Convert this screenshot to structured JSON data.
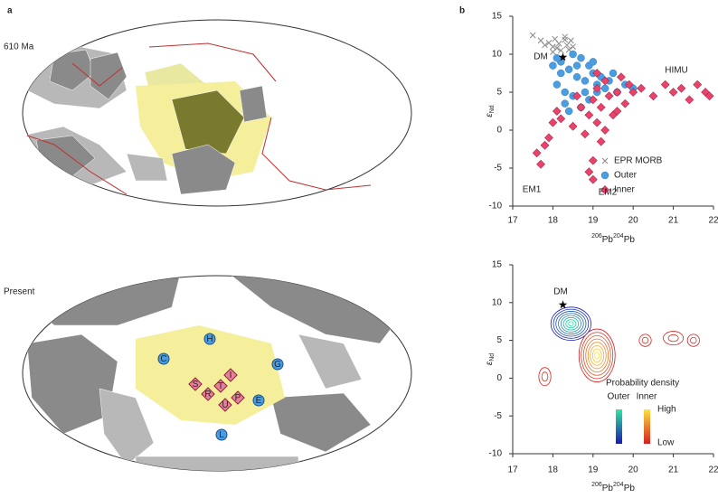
{
  "figure": {
    "panel_labels": [
      "a",
      "b"
    ],
    "maps": [
      {
        "label": "610 Ma"
      },
      {
        "label": "Present",
        "markers": [
          {
            "letter": "H",
            "group": "outer"
          },
          {
            "letter": "C",
            "group": "outer"
          },
          {
            "letter": "G",
            "group": "outer"
          },
          {
            "letter": "E",
            "group": "outer"
          },
          {
            "letter": "L",
            "group": "outer"
          },
          {
            "letter": "S",
            "group": "inner"
          },
          {
            "letter": "R",
            "group": "inner"
          },
          {
            "letter": "T",
            "group": "inner"
          },
          {
            "letter": "I",
            "group": "inner"
          },
          {
            "letter": "U",
            "group": "inner"
          },
          {
            "letter": "P",
            "group": "inner"
          }
        ]
      }
    ]
  },
  "chart_data": [
    {
      "type": "scatter",
      "xlim": [
        17,
        22
      ],
      "ylim": [
        -10,
        15
      ],
      "xticks": [
        17,
        18,
        19,
        20,
        21,
        22
      ],
      "yticks": [
        -10,
        -5,
        0,
        5,
        10,
        15
      ],
      "ylabel": [
        {
          "text": "ε"
        },
        {
          "text": "Nd",
          "sub": true
        }
      ],
      "xlabel": [
        {
          "text": "206",
          "sup": true
        },
        {
          "text": "Pb"
        },
        {
          "text": "204",
          "sup": true
        },
        {
          "text": "Pb"
        }
      ],
      "annotations": [
        "DM",
        "HIMU",
        "EM1",
        "EM2"
      ],
      "star": {
        "x": 18.25,
        "y": 9.6
      },
      "series": [
        {
          "name": "EPR MORB",
          "marker": "x",
          "color": "#888888",
          "x": [
            17.5,
            17.7,
            17.8,
            17.9,
            18.0,
            18.05,
            18.1,
            18.15,
            18.2,
            18.3,
            18.35,
            18.4,
            18.45,
            18.5,
            18.3,
            18.0
          ],
          "y": [
            12.5,
            11.8,
            11.2,
            11.5,
            11.0,
            12.0,
            10.8,
            11.4,
            10.5,
            11.9,
            11.2,
            10.6,
            11.8,
            11.0,
            12.3,
            10.3
          ]
        },
        {
          "name": "Outer",
          "marker": "circle",
          "color": "#4a9de0",
          "x": [
            18.0,
            18.1,
            18.2,
            18.3,
            18.4,
            18.5,
            18.6,
            18.7,
            18.8,
            18.9,
            19.0,
            19.1,
            19.2,
            19.3,
            19.4,
            19.6,
            19.8,
            20.0,
            18.3,
            18.5,
            18.7,
            18.9,
            19.1,
            18.2,
            18.4,
            18.6,
            18.8,
            19.0,
            19.5,
            18.1
          ],
          "y": [
            8.5,
            6.0,
            9.0,
            5.0,
            8.0,
            10.0,
            7.0,
            9.5,
            6.5,
            8.5,
            7.5,
            6.0,
            7.0,
            5.5,
            6.5,
            5.0,
            6.0,
            5.5,
            3.5,
            4.5,
            3.0,
            4.0,
            5.0,
            7.5,
            2.5,
            8.5,
            5.0,
            9.0,
            7.5,
            9.5
          ]
        },
        {
          "name": "Inner",
          "marker": "diamond",
          "color": "#e8446a",
          "x": [
            17.6,
            17.7,
            17.8,
            17.9,
            18.0,
            18.1,
            18.2,
            18.5,
            18.7,
            18.8,
            18.9,
            19.0,
            19.0,
            19.1,
            19.1,
            19.2,
            19.2,
            19.3,
            19.4,
            19.5,
            19.6,
            19.7,
            19.8,
            19.9,
            20.0,
            20.2,
            20.5,
            20.8,
            21.0,
            21.2,
            21.4,
            21.6,
            21.8,
            21.9,
            19.0,
            18.9,
            19.3,
            19.1,
            18.6,
            19.6
          ],
          "y": [
            -3.0,
            -4.5,
            -2.0,
            -1.0,
            1.0,
            2.5,
            1.5,
            0.5,
            3.0,
            -0.5,
            2.0,
            4.0,
            -4.0,
            1.0,
            5.5,
            3.0,
            -1.5,
            6.5,
            4.5,
            2.0,
            5.0,
            7.0,
            3.5,
            6.0,
            5.0,
            5.5,
            4.5,
            6.0,
            5.0,
            5.5,
            4.0,
            6.0,
            5.0,
            4.5,
            -6.5,
            -5.5,
            0.0,
            7.5,
            4.5,
            2.5
          ]
        }
      ]
    },
    {
      "type": "density",
      "xlim": [
        17,
        22
      ],
      "ylim": [
        -10,
        15
      ],
      "xticks": [
        17,
        18,
        19,
        20,
        21,
        22
      ],
      "yticks": [
        -10,
        -5,
        0,
        5,
        10,
        15
      ],
      "ylabel": [
        {
          "text": "ε"
        },
        {
          "text": "Nd",
          "sub": true
        }
      ],
      "xlabel": [
        {
          "text": "206",
          "sup": true
        },
        {
          "text": "Pb"
        },
        {
          "text": "204",
          "sup": true
        },
        {
          "text": "Pb"
        }
      ],
      "annotations": [
        "DM"
      ],
      "star": {
        "x": 18.25,
        "y": 9.7
      },
      "legend_title": "Probability density",
      "high_label": "High",
      "low_label": "Low",
      "groups": [
        {
          "name": "Outer",
          "colors": [
            "#1a1ab0",
            "#2ee8a0"
          ],
          "peaks": [
            {
              "x": 18.45,
              "y": 7.2,
              "rx": 0.5,
              "ry": 2.2
            }
          ]
        },
        {
          "name": "Inner",
          "colors": [
            "#d42020",
            "#ffe040"
          ],
          "peaks": [
            {
              "x": 19.1,
              "y": 3,
              "rx": 0.45,
              "ry": 3.5
            },
            {
              "x": 20.3,
              "y": 5,
              "rx": 0.15,
              "ry": 0.8
            },
            {
              "x": 21.0,
              "y": 5.3,
              "rx": 0.25,
              "ry": 0.9
            },
            {
              "x": 21.5,
              "y": 5,
              "rx": 0.15,
              "ry": 0.8
            },
            {
              "x": 17.8,
              "y": 0.2,
              "rx": 0.15,
              "ry": 1.2
            }
          ]
        }
      ]
    }
  ]
}
